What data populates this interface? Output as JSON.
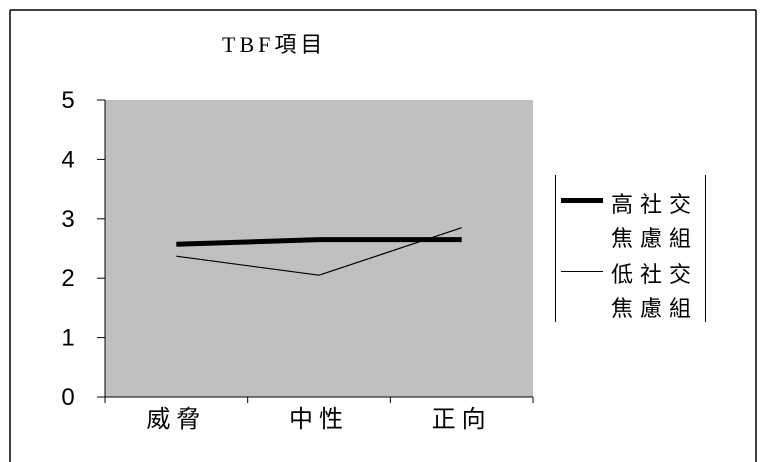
{
  "chart_data": {
    "type": "line",
    "title": "TBF項目",
    "categories": [
      "威脅",
      "中性",
      "正向"
    ],
    "series": [
      {
        "name": "高社交焦慮組",
        "values": [
          2.57,
          2.65,
          2.65
        ]
      },
      {
        "name": "低社交焦慮組",
        "values": [
          2.37,
          2.05,
          2.85
        ]
      }
    ],
    "ylim": [
      0,
      5
    ],
    "yticks": [
      0,
      1,
      2,
      3,
      4,
      5
    ],
    "grid": false,
    "legend": "right",
    "colors": {
      "background": "#ffffff",
      "plot_background": "#c0c0c0",
      "line": "#000000"
    }
  }
}
